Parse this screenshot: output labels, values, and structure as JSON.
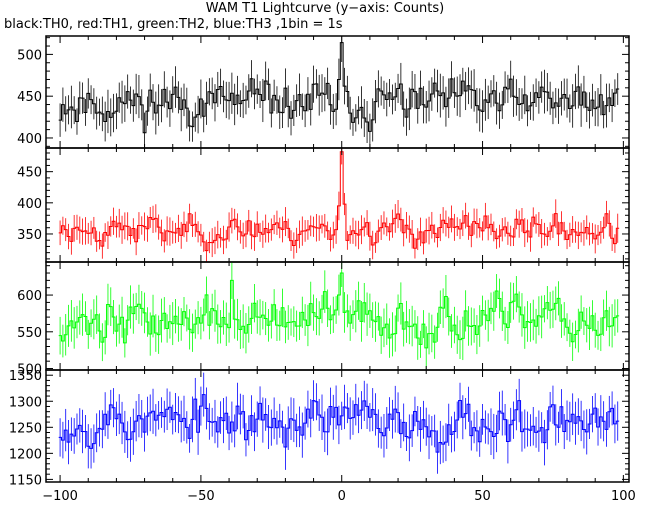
{
  "chart_data": {
    "type": "line",
    "title": "WAM T1 Lightcurve (y−axis: Counts)",
    "subtitle": "black:TH0, red:TH1, green:TH2, blue:TH3 ,1bin = 1s",
    "x_range": [
      -105,
      102
    ],
    "x_ticks": [
      -100,
      -50,
      0,
      50,
      100
    ],
    "x_tick_labels": [
      "−100",
      "−50",
      "0",
      "50",
      "100"
    ],
    "panels": [
      {
        "name": "TH0",
        "color": "#000000",
        "ylim": [
          388,
          522
        ],
        "y_ticks": [
          400,
          450,
          500
        ],
        "y_tick_labels": [
          "400",
          "450",
          "500"
        ],
        "baseline": 442,
        "noise": 16,
        "err": 21,
        "spikes": [
          [
            0,
            514
          ],
          [
            -1,
            470
          ],
          [
            1,
            462
          ]
        ],
        "seed": 11
      },
      {
        "name": "TH1",
        "color": "#ff0000",
        "ylim": [
          305,
          488
        ],
        "y_ticks": [
          350,
          400,
          450
        ],
        "y_tick_labels": [
          "350",
          "400",
          "450"
        ],
        "baseline": 357,
        "noise": 14,
        "err": 19,
        "spikes": [
          [
            0,
            482
          ],
          [
            -1,
            395
          ],
          [
            1,
            398
          ]
        ],
        "seed": 23
      },
      {
        "name": "TH2",
        "color": "#00ff00",
        "ylim": [
          498,
          645
        ],
        "y_ticks": [
          500,
          550,
          600
        ],
        "y_tick_labels": [
          "500",
          "550",
          "600"
        ],
        "baseline": 565,
        "noise": 18,
        "err": 24,
        "spikes": [
          [
            0,
            630
          ],
          [
            -39,
            620
          ],
          [
            -1,
            600
          ]
        ],
        "seed": 37
      },
      {
        "name": "TH3",
        "color": "#0000ff",
        "ylim": [
          1145,
          1360
        ],
        "y_ticks": [
          1150,
          1200,
          1250,
          1300,
          1350
        ],
        "y_tick_labels": [
          "1150",
          "1200",
          "1250",
          "1300",
          "1350"
        ],
        "baseline": 1262,
        "noise": 28,
        "err": 36,
        "spikes": [],
        "seed": 53
      }
    ]
  }
}
